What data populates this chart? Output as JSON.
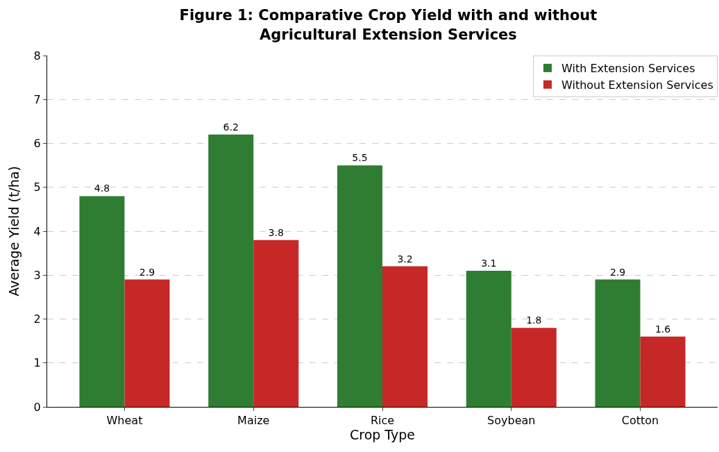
{
  "chart_data": {
    "type": "bar",
    "title": "Figure 1: Comparative Crop Yield with and without Agricultural Extension Services",
    "xlabel": "Crop Type",
    "ylabel": "Average Yield (t/ha)",
    "categories": [
      "Wheat",
      "Maize",
      "Rice",
      "Soybean",
      "Cotton"
    ],
    "series": [
      {
        "name": "With Extension Services",
        "color": "#2e7d32",
        "values": [
          4.8,
          6.2,
          5.5,
          3.1,
          2.9
        ]
      },
      {
        "name": "Without Extension Services",
        "color": "#c62828",
        "values": [
          2.9,
          3.8,
          3.2,
          1.8,
          1.6
        ]
      }
    ],
    "ylim": [
      0,
      8
    ],
    "yticks": [
      0,
      1,
      2,
      3,
      4,
      5,
      6,
      7,
      8
    ],
    "grid": "y",
    "legend": "top right",
    "data_labels": true
  }
}
